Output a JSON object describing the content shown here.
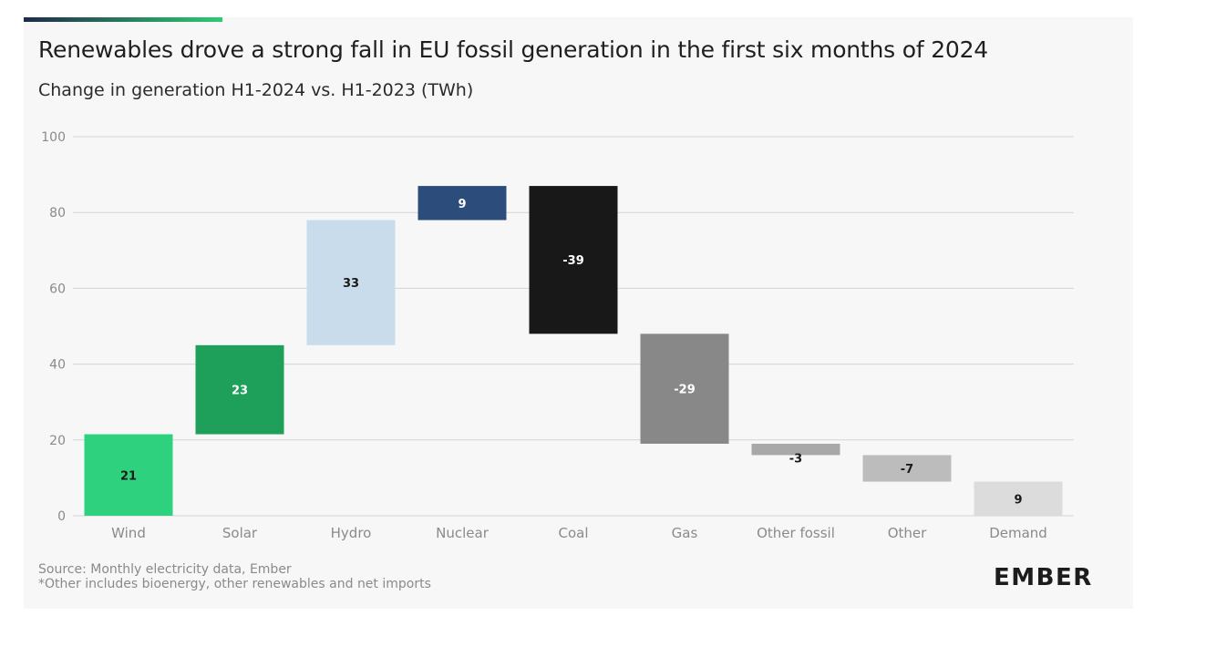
{
  "header": {
    "title": "Renewables drove a strong fall in EU fossil generation in the first six months of 2024",
    "subtitle": "Change in generation H1-2024 vs. H1-2023 (TWh)"
  },
  "footer": {
    "source": "Source: Monthly electricity data, Ember",
    "note": "*Other includes bioenergy, other renewables and net imports",
    "logo_text": "EMBER"
  },
  "colors": {
    "accent_bar": "#1e2a4a",
    "accent_bar_end": "#2ecc71",
    "grid": "#d4d4d4",
    "tick_text": "#8a8a8a"
  },
  "chart_data": {
    "type": "waterfall",
    "title": "Renewables drove a strong fall in EU fossil generation in the first six months of 2024",
    "subtitle": "Change in generation H1-2024 vs. H1-2023 (TWh)",
    "ylim": [
      0,
      100
    ],
    "yticks": [
      0,
      20,
      40,
      60,
      80,
      100
    ],
    "grid": true,
    "categories": [
      "Wind",
      "Solar",
      "Hydro",
      "Nuclear",
      "Coal",
      "Gas",
      "Other fossil",
      "Other",
      "Demand"
    ],
    "values": [
      21,
      23,
      33,
      9,
      -39,
      -29,
      -3,
      -7,
      9
    ],
    "labels": [
      "21",
      "23",
      "33",
      "9",
      "-39",
      "-29",
      "-3",
      "-7",
      "9"
    ],
    "ranges": [
      [
        0,
        21.5
      ],
      [
        21.5,
        45
      ],
      [
        45,
        78
      ],
      [
        78,
        87
      ],
      [
        48,
        87
      ],
      [
        19,
        48
      ],
      [
        16,
        19
      ],
      [
        9,
        16
      ],
      [
        0,
        9
      ]
    ],
    "bar_colors": [
      "#2ed17e",
      "#1fa05a",
      "#c9dcec",
      "#2c4c7c",
      "#181818",
      "#888888",
      "#a8a8a8",
      "#bcbcbc",
      "#dcdcdc"
    ],
    "label_colors": [
      "#1a1a1a",
      "#ffffff",
      "#1a1a1a",
      "#ffffff",
      "#ffffff",
      "#ffffff",
      "#1a1a1a",
      "#1a1a1a",
      "#1a1a1a"
    ]
  }
}
